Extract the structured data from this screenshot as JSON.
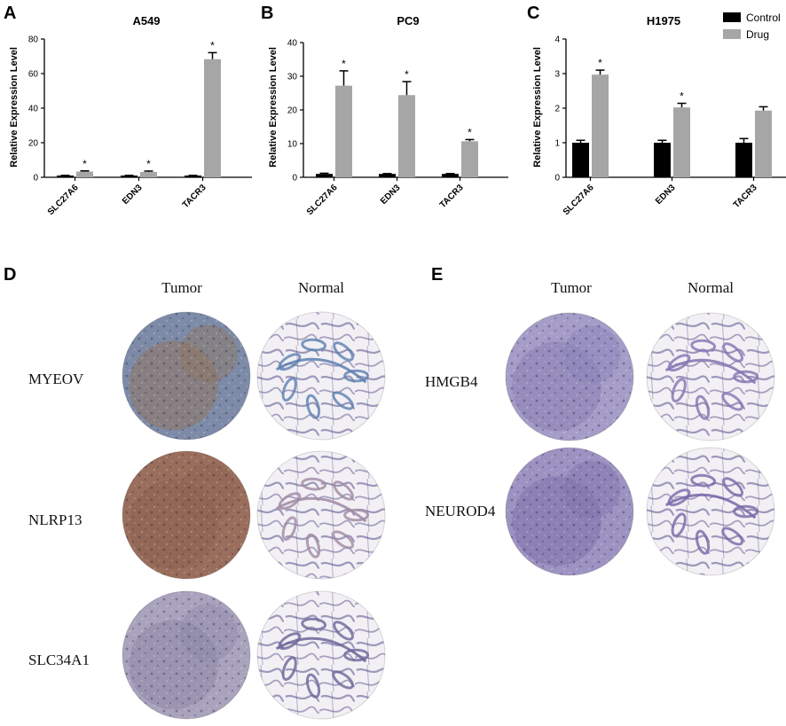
{
  "panels": {
    "a": "A",
    "b": "B",
    "c": "C",
    "d": "D",
    "e": "E"
  },
  "legend": {
    "control_label": "Control",
    "drug_label": "Drug",
    "control_color": "#000000",
    "drug_color": "#a6a6a6"
  },
  "chart_data": [
    {
      "type": "bar",
      "title": "A549",
      "ylabel": "Relative Expression Level",
      "categories": [
        "SLC27A6",
        "EDN3",
        "TACR3"
      ],
      "ylim": [
        0,
        80
      ],
      "yticks": [
        "0",
        "20",
        "40",
        "60",
        "80"
      ],
      "series": [
        {
          "name": "Control",
          "values": [
            1,
            1,
            1
          ],
          "errors": [
            0.1,
            0.1,
            0.1
          ]
        },
        {
          "name": "Drug",
          "values": [
            3.3,
            3.1,
            68.3
          ],
          "errors": [
            0.4,
            0.5,
            3.8
          ]
        }
      ],
      "significance": [
        "*",
        "*",
        "*"
      ]
    },
    {
      "type": "bar",
      "title": "PC9",
      "ylabel": "Relative Expression Level",
      "categories": [
        "SLC27A6",
        "EDN3",
        "TACR3"
      ],
      "ylim": [
        0,
        40
      ],
      "yticks": [
        "0",
        "10",
        "20",
        "30",
        "40"
      ],
      "series": [
        {
          "name": "Control",
          "values": [
            1,
            1,
            1
          ],
          "errors": [
            0.2,
            0.1,
            0.1
          ]
        },
        {
          "name": "Drug",
          "values": [
            27.2,
            24.4,
            10.7
          ],
          "errors": [
            4.4,
            4.0,
            0.5
          ]
        }
      ],
      "significance": [
        "*",
        "*",
        "*"
      ]
    },
    {
      "type": "bar",
      "title": "H1975",
      "ylabel": "Relative Expression Level",
      "categories": [
        "SLC27A6",
        "EDN3",
        "TACR3"
      ],
      "ylim": [
        0,
        4
      ],
      "yticks": [
        "0",
        "1",
        "2",
        "3",
        "4"
      ],
      "series": [
        {
          "name": "Control",
          "values": [
            1.0,
            1.0,
            1.0
          ],
          "errors": [
            0.07,
            0.07,
            0.12
          ]
        },
        {
          "name": "Drug",
          "values": [
            2.97,
            2.02,
            1.93
          ],
          "errors": [
            0.13,
            0.12,
            0.11
          ]
        }
      ],
      "significance": [
        "*",
        "*",
        ""
      ]
    }
  ],
  "panel_d": {
    "tumor_header": "Tumor",
    "normal_header": "Normal",
    "rows": [
      {
        "gene": "MYEOV",
        "tumor_stain": "#8f7660",
        "tumor_base": "#7d8ba8",
        "normal_stain": "#5d7fb0"
      },
      {
        "gene": "NLRP13",
        "tumor_stain": "#8e6352",
        "tumor_base": "#9a6e5c",
        "normal_stain": "#9f8aa3"
      },
      {
        "gene": "SLC34A1",
        "tumor_stain": "#8e88a8",
        "tumor_base": "#a9a3bd",
        "normal_stain": "#6c6598"
      }
    ]
  },
  "panel_e": {
    "tumor_header": "Tumor",
    "normal_header": "Normal",
    "rows": [
      {
        "gene": "HMGB4",
        "tumor_stain": "#8a80b5",
        "tumor_base": "#a59dc8",
        "normal_stain": "#8373b1"
      },
      {
        "gene": "NEUROD4",
        "tumor_stain": "#7e72aa",
        "tumor_base": "#9d93c2",
        "normal_stain": "#7767a8"
      }
    ]
  }
}
